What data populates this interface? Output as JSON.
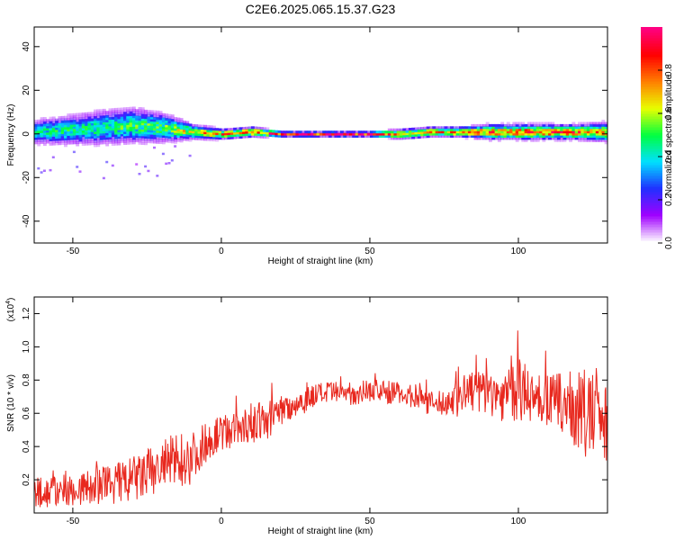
{
  "title": "C2E6.2025.065.15.37.G23",
  "chart_data": [
    {
      "type": "heatmap",
      "xlabel": "Height of straight line (km)",
      "ylabel": "Frequency (Hz)",
      "xlim": [
        -63,
        130
      ],
      "ylim": [
        -50,
        49
      ],
      "xticks": [
        "-50",
        "0",
        "50",
        "100"
      ],
      "yticks": [
        "-40",
        "-20",
        "0",
        "20",
        "40"
      ],
      "colorbar": {
        "label": "Normalized spectral amplitude",
        "range": [
          0,
          1
        ],
        "ticks": [
          "0.0",
          "0.2",
          "0.4",
          "0.6",
          "0.8"
        ],
        "colors": [
          "#ffffff",
          "#a000ff",
          "#2030ff",
          "#00e0ff",
          "#00ff40",
          "#e8ff00",
          "#ff8000",
          "#ff0000",
          "#ff0080"
        ]
      },
      "ridge": {
        "x": [
          -63,
          -50,
          -40,
          -30,
          -20,
          -10,
          0,
          10,
          20,
          30,
          40,
          50,
          60,
          70,
          80,
          90,
          100,
          110,
          120,
          130
        ],
        "center_hz": [
          1,
          2,
          3,
          4,
          3,
          1,
          0,
          1,
          0,
          0,
          0,
          0,
          0,
          1,
          1,
          1,
          1,
          1,
          1,
          1
        ],
        "spread_hz": [
          5,
          6,
          7,
          7,
          6,
          3,
          2,
          2,
          1,
          1,
          1,
          1,
          2,
          2,
          2,
          3,
          3,
          3,
          3,
          4
        ],
        "peak_amplitude": [
          0.45,
          0.5,
          0.5,
          0.55,
          0.55,
          0.7,
          0.8,
          0.9,
          0.95,
          1.0,
          1.0,
          0.95,
          0.75,
          0.75,
          0.8,
          0.85,
          0.9,
          0.85,
          0.85,
          0.7
        ]
      }
    },
    {
      "type": "line",
      "xlabel": "Height of straight line (km)",
      "ylabel": "SNR (10 * v/v)",
      "multiplier_label": "(x10",
      "multiplier_exp": "4",
      "xlim": [
        -63,
        130
      ],
      "ylim": [
        0,
        1.3
      ],
      "xticks": [
        "-50",
        "0",
        "50",
        "100"
      ],
      "yticks": [
        "0.2",
        "0.4",
        "0.6",
        "0.8",
        "1.0",
        "1.2"
      ],
      "series": [
        {
          "color": "#e8281e",
          "x": [
            -63,
            -55,
            -50,
            -45,
            -40,
            -35,
            -30,
            -25,
            -20,
            -15,
            -10,
            -5,
            0,
            5,
            10,
            15,
            20,
            25,
            30,
            35,
            40,
            45,
            50,
            55,
            60,
            65,
            70,
            75,
            80,
            85,
            90,
            95,
            100,
            105,
            110,
            115,
            120,
            125,
            130
          ],
          "y": [
            0.12,
            0.13,
            0.14,
            0.15,
            0.17,
            0.18,
            0.2,
            0.23,
            0.28,
            0.32,
            0.33,
            0.43,
            0.48,
            0.5,
            0.54,
            0.55,
            0.62,
            0.65,
            0.7,
            0.72,
            0.72,
            0.72,
            0.74,
            0.73,
            0.72,
            0.7,
            0.66,
            0.66,
            0.7,
            0.74,
            0.72,
            0.7,
            0.74,
            0.7,
            0.68,
            0.66,
            0.62,
            0.56,
            0.62
          ],
          "noise_amplitude": [
            0.1,
            0.1,
            0.1,
            0.11,
            0.12,
            0.13,
            0.14,
            0.16,
            0.16,
            0.17,
            0.16,
            0.12,
            0.1,
            0.11,
            0.12,
            0.12,
            0.1,
            0.08,
            0.08,
            0.07,
            0.07,
            0.07,
            0.07,
            0.07,
            0.07,
            0.07,
            0.07,
            0.08,
            0.12,
            0.14,
            0.14,
            0.15,
            0.2,
            0.16,
            0.16,
            0.18,
            0.25,
            0.3,
            0.3
          ]
        }
      ]
    }
  ]
}
